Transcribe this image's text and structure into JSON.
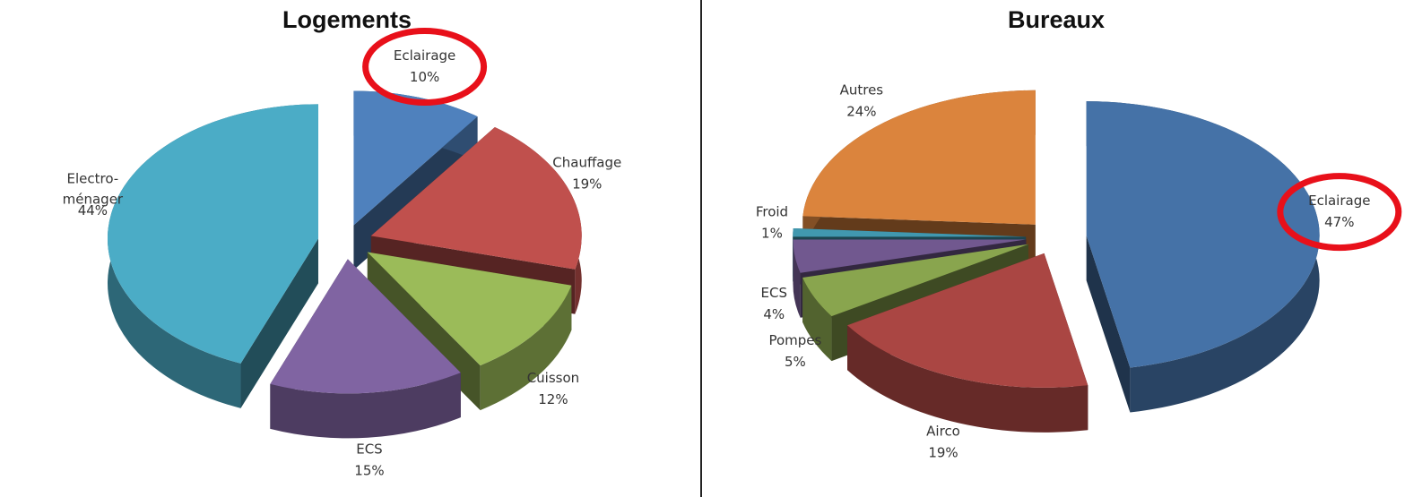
{
  "chart_data": [
    {
      "type": "pie",
      "title": "Logements",
      "categories": [
        "Eclairage",
        "Chauffage",
        "Cuisson",
        "ECS",
        "Electro-ménager"
      ],
      "values": [
        10,
        19,
        12,
        15,
        44
      ],
      "value_labels": [
        "10%",
        "19%",
        "12%",
        "15%",
        "44%"
      ],
      "colors": [
        "#4f81bd",
        "#c0504d",
        "#9bbb59",
        "#8064a2",
        "#4bacc6"
      ]
    },
    {
      "type": "pie",
      "title": "Bureaux",
      "categories": [
        "Eclairage",
        "Airco",
        "Pompes",
        "ECS",
        "Froid",
        "Autres"
      ],
      "values": [
        47,
        19,
        5,
        4,
        1,
        24
      ],
      "value_labels": [
        "47%",
        "19%",
        "5%",
        "4%",
        "1%",
        "24%"
      ],
      "colors": [
        "#4572a7",
        "#aa4643",
        "#89a54e",
        "#71588f",
        "#4198af",
        "#db843d"
      ]
    }
  ]
}
